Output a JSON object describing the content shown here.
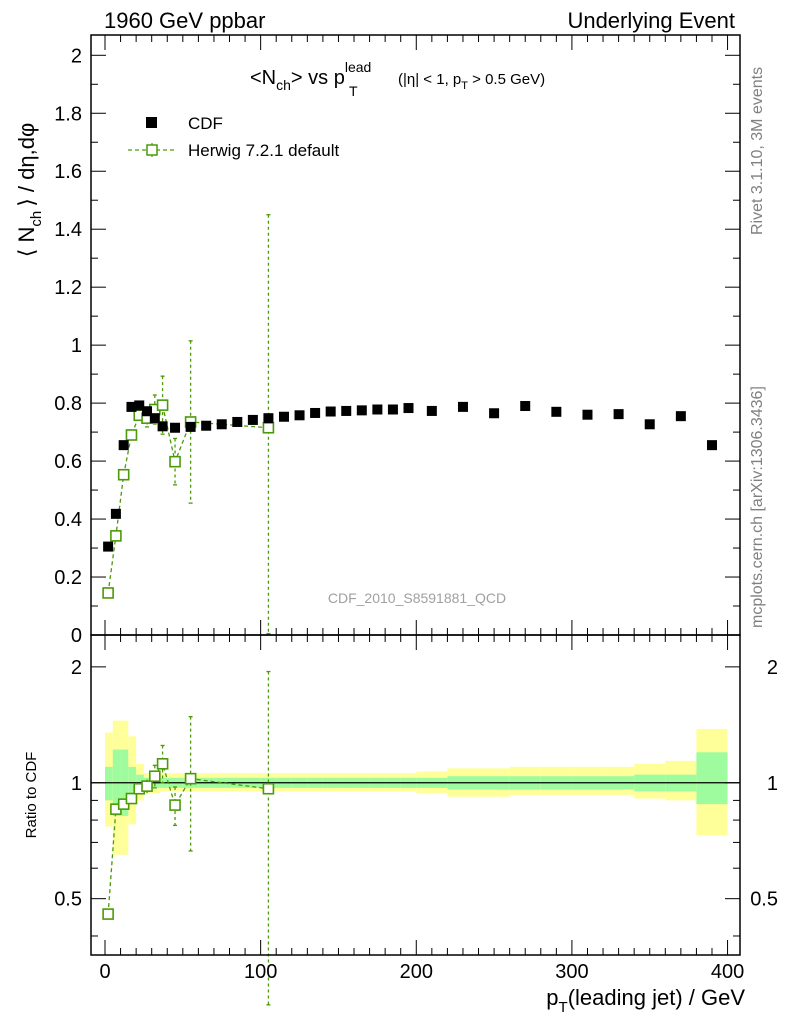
{
  "header": {
    "left": "1960 GeV ppbar",
    "right": "Underlying Event"
  },
  "side": {
    "rivet": "Rivet 3.1.10,  3M events",
    "mcplots": "mcplots.cern.ch [arXiv:1306.3436]"
  },
  "watermark": "CDF_2010_S8591881_QCD",
  "title": {
    "lhs": "<N",
    "lhs_sub": "ch",
    "mid": "> vs p",
    "pt_sup": "lead",
    "pt_sub": "T",
    "cond": "(|η| < 1, p",
    "cond_sub": "T",
    "cond_end": " > 0.5 GeV)"
  },
  "axes": {
    "ylabel_main": "⟨ N",
    "ylabel_main_sub": "ch",
    "ylabel_main_end": "⟩ / dη,dφ",
    "ylabel_ratio": "Ratio to CDF",
    "xlabel": "p",
    "xlabel_sub": "T",
    "xlabel_end": "(leading jet) / GeV"
  },
  "legend": {
    "data": "CDF",
    "mc": "Herwig 7.2.1 default"
  },
  "colors": {
    "mc": "#4a9a0a",
    "band_inner": "#9efc9e",
    "band_outer": "#ffff99",
    "data": "#000000"
  },
  "chart_data": [
    {
      "type": "scatter",
      "panel": "main",
      "xlim": [
        -9,
        408
      ],
      "ylim": [
        0,
        2.07
      ],
      "x_ticks": [
        0,
        100,
        200,
        300,
        400
      ],
      "y_ticks": [
        "0",
        "0.2",
        "0.4",
        "0.6",
        "0.8",
        "1",
        "1.2",
        "1.4",
        "1.6",
        "1.8",
        "2"
      ],
      "y_tick_values": [
        0,
        0.2,
        0.4,
        0.6,
        0.8,
        1,
        1.2,
        1.4,
        1.6,
        1.8,
        2
      ],
      "series": [
        {
          "name": "CDF",
          "x": [
            2,
            7,
            12,
            17,
            22,
            27,
            32,
            37,
            45,
            55,
            65,
            75,
            85,
            95,
            105,
            115,
            125,
            135,
            145,
            155,
            165,
            175,
            185,
            195,
            210,
            230,
            250,
            270,
            290,
            310,
            330,
            350,
            370,
            390
          ],
          "y": [
            0.305,
            0.418,
            0.655,
            0.787,
            0.792,
            0.772,
            0.748,
            0.72,
            0.715,
            0.718,
            0.722,
            0.727,
            0.735,
            0.742,
            0.748,
            0.753,
            0.758,
            0.766,
            0.771,
            0.773,
            0.775,
            0.778,
            0.778,
            0.783,
            0.773,
            0.787,
            0.765,
            0.79,
            0.77,
            0.76,
            0.762,
            0.727,
            0.755,
            0.655
          ]
        },
        {
          "name": "Herwig 7.2.1 default",
          "x": [
            2,
            7,
            12,
            17,
            22,
            27,
            32,
            37,
            45,
            55,
            105
          ],
          "y": [
            0.145,
            0.342,
            0.553,
            0.69,
            0.758,
            0.748,
            0.778,
            0.793,
            0.598,
            0.735,
            0.715
          ],
          "yerr_low": [
            0.01,
            0.01,
            0.015,
            0.02,
            0.02,
            0.03,
            0.05,
            0.1,
            0.08,
            0.28,
            0.71
          ],
          "yerr_high": [
            0.01,
            0.01,
            0.015,
            0.02,
            0.02,
            0.03,
            0.05,
            0.1,
            0.08,
            0.28,
            0.735
          ]
        }
      ]
    },
    {
      "type": "scatter",
      "panel": "ratio",
      "xlim": [
        -9,
        408
      ],
      "ylim": [
        0.357,
        2.42
      ],
      "log_y": true,
      "y_ticks": [
        "0.5",
        "1",
        "2"
      ],
      "y_tick_values": [
        0.5,
        1,
        2
      ],
      "bands": {
        "edges": [
          0,
          5,
          10,
          15,
          20,
          25,
          30,
          35,
          40,
          50,
          60,
          70,
          80,
          90,
          100,
          110,
          120,
          130,
          140,
          150,
          160,
          170,
          180,
          190,
          200,
          220,
          240,
          260,
          280,
          300,
          320,
          340,
          360,
          380,
          400
        ],
        "inner_low": [
          0.9,
          0.82,
          0.82,
          0.9,
          0.95,
          0.97,
          0.97,
          0.97,
          0.97,
          0.97,
          0.97,
          0.97,
          0.97,
          0.97,
          0.97,
          0.97,
          0.97,
          0.97,
          0.97,
          0.97,
          0.97,
          0.97,
          0.97,
          0.97,
          0.97,
          0.96,
          0.96,
          0.96,
          0.96,
          0.96,
          0.96,
          0.95,
          0.95,
          0.88
        ],
        "inner_high": [
          1.1,
          1.22,
          1.22,
          1.1,
          1.05,
          1.03,
          1.03,
          1.03,
          1.03,
          1.03,
          1.03,
          1.03,
          1.03,
          1.03,
          1.03,
          1.03,
          1.03,
          1.03,
          1.03,
          1.03,
          1.03,
          1.03,
          1.03,
          1.03,
          1.03,
          1.04,
          1.04,
          1.04,
          1.04,
          1.04,
          1.04,
          1.05,
          1.05,
          1.2
        ],
        "outer_low": [
          0.77,
          0.65,
          0.65,
          0.78,
          0.9,
          0.94,
          0.94,
          0.95,
          0.95,
          0.95,
          0.95,
          0.95,
          0.95,
          0.95,
          0.95,
          0.95,
          0.95,
          0.95,
          0.95,
          0.95,
          0.95,
          0.95,
          0.95,
          0.95,
          0.94,
          0.92,
          0.92,
          0.93,
          0.93,
          0.93,
          0.93,
          0.91,
          0.9,
          0.73
        ],
        "outer_high": [
          1.35,
          1.45,
          1.45,
          1.32,
          1.12,
          1.06,
          1.06,
          1.06,
          1.06,
          1.06,
          1.06,
          1.06,
          1.06,
          1.06,
          1.06,
          1.06,
          1.06,
          1.06,
          1.06,
          1.06,
          1.06,
          1.06,
          1.06,
          1.06,
          1.07,
          1.09,
          1.09,
          1.1,
          1.1,
          1.1,
          1.1,
          1.12,
          1.14,
          1.38
        ]
      },
      "series": [
        {
          "name": "Herwig 7.2.1 default",
          "x": [
            2,
            7,
            12,
            17,
            22,
            27,
            32,
            37,
            45,
            55,
            105
          ],
          "y": [
            0.456,
            0.854,
            0.88,
            0.91,
            0.965,
            0.98,
            1.04,
            1.12,
            0.875,
            1.025,
            0.965
          ],
          "yerr_low": [
            0.01,
            0.01,
            0.015,
            0.02,
            0.02,
            0.04,
            0.07,
            0.12,
            0.1,
            0.36,
            0.7
          ],
          "yerr_high": [
            0.01,
            0.01,
            0.015,
            0.02,
            0.02,
            0.04,
            0.07,
            0.13,
            0.1,
            0.46,
            0.98
          ]
        }
      ]
    }
  ]
}
